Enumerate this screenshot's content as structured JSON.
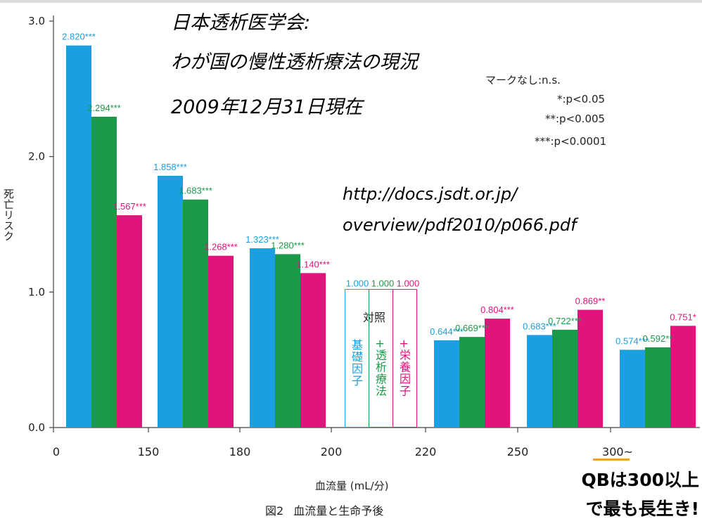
{
  "title_lines": [
    "日本透析医学会:",
    "わが国の慢性透析療法の現況",
    "2009年12月31日現在"
  ],
  "url_lines": [
    "http://docs.jsdt.or.jp/",
    "overview/pdf2010/p066.pdf"
  ],
  "significance_legend": [
    "マークなし:n.s.",
    "*:p<0.05",
    "**:p<0.005",
    "***:p<0.0001"
  ],
  "reference_group": {
    "header": "対照",
    "labels": [
      "基礎因子",
      "+透析療法",
      "+栄養因子"
    ]
  },
  "caption": {
    "figure": "図2",
    "text": "血流量と生命予後"
  },
  "note_lines": [
    "QBは300以上",
    "で最も長生き!"
  ],
  "colors": {
    "base": "#1a9fe0",
    "dialysis": "#1a9a48",
    "nutrition": "#e0147c",
    "highlight": "#f0a030"
  },
  "chart_data": {
    "type": "bar",
    "xlabel": "血流量 (mL/分)",
    "ylabel": "死亡リスク",
    "ylim": [
      0,
      3.0
    ],
    "yticks": [
      "0.0",
      "1.0",
      "2.0",
      "3.0"
    ],
    "x_ticks": [
      "0",
      "150",
      "180",
      "200",
      "220",
      "250",
      "300~"
    ],
    "categories": [
      "0-150",
      "150-180",
      "180-200",
      "200-220",
      "220-250",
      "250-300",
      "300~"
    ],
    "series": [
      {
        "key": "base",
        "values": [
          2.82,
          1.858,
          1.323,
          1.0,
          0.644,
          0.683,
          0.574
        ],
        "labels": [
          "2.820***",
          "1.858***",
          "1.323***",
          "1.000",
          "0.644***",
          "0.683***",
          "0.574***"
        ]
      },
      {
        "key": "dialysis",
        "values": [
          2.294,
          1.683,
          1.28,
          1.0,
          0.669,
          0.722,
          0.592
        ],
        "labels": [
          "2.294***",
          "1.683***",
          "1.280***",
          "1.000",
          "0.669***",
          "0.722***",
          "0.592**"
        ]
      },
      {
        "key": "nutrition",
        "values": [
          1.567,
          1.268,
          1.14,
          1.0,
          0.804,
          0.869,
          0.751
        ],
        "labels": [
          "1.567***",
          "1.268***",
          "1.140***",
          "1.000",
          "0.804***",
          "0.869**",
          "0.751*"
        ]
      }
    ],
    "reference_category_index": 3,
    "grid": false
  }
}
